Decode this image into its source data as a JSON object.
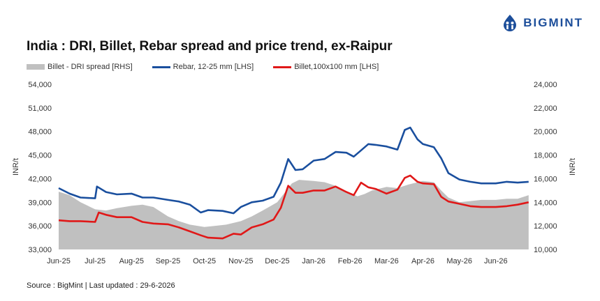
{
  "brand": {
    "name": "BIGMINT",
    "logo_icon": "bigmint-drop-icon",
    "color": "#1c4e9a"
  },
  "chart_data": {
    "type": "line",
    "title": "India : DRI, Billet, Rebar spread and price trend, ex-Raipur",
    "source": "Source : BigMint | Last updated : 29-6-2026",
    "ylabel": "INR/t",
    "y2label": "INR/t",
    "ylim": [
      33000,
      54000
    ],
    "y2lim": [
      10000,
      24000
    ],
    "yticks": [
      "33,000",
      "36,000",
      "39,000",
      "42,000",
      "45,000",
      "48,000",
      "51,000",
      "54,000"
    ],
    "y2ticks": [
      "10,000",
      "12,000",
      "14,000",
      "16,000",
      "18,000",
      "20,000",
      "22,000",
      "24,000"
    ],
    "xlim": [
      0,
      13
    ],
    "xtick_labels": [
      "Jun-25",
      "Jul-25",
      "Aug-25",
      "Sep-25",
      "Oct-25",
      "Nov-25",
      "Dec-25",
      "Jan-26",
      "Feb-26",
      "Mar-26",
      "Apr-26",
      "May-26",
      "Jun-26"
    ],
    "grid": false,
    "legend_position": "top",
    "series": [
      {
        "name": "Billet - DRI spread  [RHS]",
        "type": "area",
        "axis": "right",
        "color": "#c0c0c0",
        "points": [
          [
            0,
            14900
          ],
          [
            0.3,
            14600
          ],
          [
            0.6,
            14000
          ],
          [
            1,
            13400
          ],
          [
            1.3,
            13300
          ],
          [
            1.6,
            13500
          ],
          [
            2,
            13700
          ],
          [
            2.3,
            13800
          ],
          [
            2.6,
            13600
          ],
          [
            3,
            12800
          ],
          [
            3.3,
            12400
          ],
          [
            3.6,
            12100
          ],
          [
            4,
            11900
          ],
          [
            4.3,
            12000
          ],
          [
            4.6,
            12100
          ],
          [
            5,
            12400
          ],
          [
            5.3,
            12800
          ],
          [
            5.6,
            13300
          ],
          [
            6,
            14000
          ],
          [
            6.2,
            14800
          ],
          [
            6.4,
            15600
          ],
          [
            6.6,
            15900
          ],
          [
            7,
            15800
          ],
          [
            7.3,
            15700
          ],
          [
            7.6,
            15400
          ],
          [
            8,
            14800
          ],
          [
            8.2,
            14500
          ],
          [
            8.4,
            14700
          ],
          [
            8.6,
            15000
          ],
          [
            9,
            15300
          ],
          [
            9.3,
            15200
          ],
          [
            9.6,
            15500
          ],
          [
            10,
            15800
          ],
          [
            10.3,
            15700
          ],
          [
            10.5,
            15000
          ],
          [
            10.7,
            14400
          ],
          [
            11,
            14000
          ],
          [
            11.3,
            14100
          ],
          [
            11.6,
            14200
          ],
          [
            12,
            14200
          ],
          [
            12.3,
            14300
          ],
          [
            12.6,
            14300
          ],
          [
            12.9,
            14600
          ]
        ]
      },
      {
        "name": "Rebar, 12-25 mm [LHS]",
        "type": "line",
        "axis": "left",
        "color": "#1a4f9e",
        "points": [
          [
            0,
            40800
          ],
          [
            0.3,
            40100
          ],
          [
            0.6,
            39600
          ],
          [
            1,
            39500
          ],
          [
            1.05,
            41000
          ],
          [
            1.3,
            40300
          ],
          [
            1.6,
            40000
          ],
          [
            2,
            40100
          ],
          [
            2.3,
            39600
          ],
          [
            2.6,
            39600
          ],
          [
            3,
            39300
          ],
          [
            3.3,
            39100
          ],
          [
            3.6,
            38700
          ],
          [
            3.9,
            37700
          ],
          [
            4.1,
            38000
          ],
          [
            4.5,
            37900
          ],
          [
            4.8,
            37600
          ],
          [
            5,
            38400
          ],
          [
            5.3,
            39000
          ],
          [
            5.6,
            39200
          ],
          [
            5.9,
            39700
          ],
          [
            6.1,
            41500
          ],
          [
            6.3,
            44500
          ],
          [
            6.5,
            43100
          ],
          [
            6.7,
            43200
          ],
          [
            7,
            44300
          ],
          [
            7.3,
            44500
          ],
          [
            7.6,
            45400
          ],
          [
            7.9,
            45300
          ],
          [
            8.1,
            44800
          ],
          [
            8.3,
            45600
          ],
          [
            8.5,
            46400
          ],
          [
            8.7,
            46300
          ],
          [
            9,
            46100
          ],
          [
            9.3,
            45700
          ],
          [
            9.5,
            48200
          ],
          [
            9.65,
            48500
          ],
          [
            9.85,
            47000
          ],
          [
            10,
            46400
          ],
          [
            10.3,
            46000
          ],
          [
            10.5,
            44600
          ],
          [
            10.7,
            42700
          ],
          [
            11,
            41900
          ],
          [
            11.3,
            41600
          ],
          [
            11.6,
            41400
          ],
          [
            12,
            41400
          ],
          [
            12.3,
            41600
          ],
          [
            12.6,
            41500
          ],
          [
            12.9,
            41600
          ]
        ]
      },
      {
        "name": "Billet,100x100 mm [LHS]",
        "type": "line",
        "axis": "left",
        "color": "#e01818",
        "points": [
          [
            0,
            36700
          ],
          [
            0.3,
            36600
          ],
          [
            0.6,
            36600
          ],
          [
            1,
            36500
          ],
          [
            1.1,
            37700
          ],
          [
            1.3,
            37400
          ],
          [
            1.6,
            37100
          ],
          [
            2,
            37100
          ],
          [
            2.3,
            36500
          ],
          [
            2.6,
            36300
          ],
          [
            3,
            36200
          ],
          [
            3.3,
            35800
          ],
          [
            3.6,
            35300
          ],
          [
            3.9,
            34800
          ],
          [
            4.1,
            34500
          ],
          [
            4.5,
            34400
          ],
          [
            4.8,
            35000
          ],
          [
            5,
            34900
          ],
          [
            5.3,
            35800
          ],
          [
            5.6,
            36200
          ],
          [
            5.9,
            36800
          ],
          [
            6.1,
            38300
          ],
          [
            6.3,
            41100
          ],
          [
            6.5,
            40200
          ],
          [
            6.7,
            40200
          ],
          [
            7,
            40500
          ],
          [
            7.3,
            40500
          ],
          [
            7.6,
            41000
          ],
          [
            7.9,
            40300
          ],
          [
            8.1,
            39900
          ],
          [
            8.3,
            41500
          ],
          [
            8.5,
            40900
          ],
          [
            8.7,
            40700
          ],
          [
            9,
            40100
          ],
          [
            9.3,
            40600
          ],
          [
            9.5,
            42100
          ],
          [
            9.65,
            42400
          ],
          [
            9.85,
            41600
          ],
          [
            10,
            41400
          ],
          [
            10.3,
            41300
          ],
          [
            10.5,
            39700
          ],
          [
            10.7,
            39100
          ],
          [
            11,
            38800
          ],
          [
            11.3,
            38500
          ],
          [
            11.6,
            38400
          ],
          [
            12,
            38400
          ],
          [
            12.3,
            38500
          ],
          [
            12.6,
            38700
          ],
          [
            12.9,
            39000
          ]
        ]
      }
    ]
  }
}
